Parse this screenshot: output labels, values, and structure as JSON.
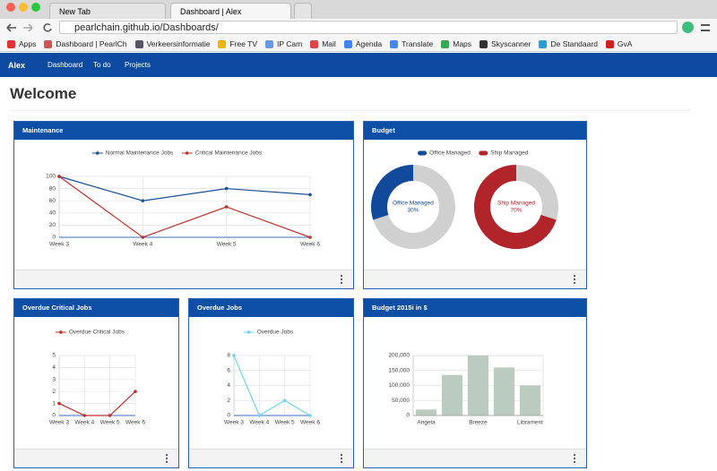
{
  "browser": {
    "tabs": [
      "New Tab",
      "Dashboard | Alex"
    ],
    "url": "pearlchain.github.io/Dashboards/",
    "bookmarks": [
      "Apps",
      "Dashboard | PearlCh",
      "Verkeersinformatie",
      "Free TV",
      "IP Cam",
      "Mail",
      "Agenda",
      "Translate",
      "Maps",
      "Skyscanner",
      "De Standaard",
      "GvA"
    ]
  },
  "nav": {
    "brand": "Alex",
    "links": [
      "Dashboard",
      "To do",
      "Projects"
    ]
  },
  "heading": "Welcome",
  "chart_data": [
    {
      "type": "line",
      "title": "Maintenance",
      "categories": [
        "Week 3",
        "Week 4",
        "Week 5",
        "Week 6"
      ],
      "series": [
        {
          "name": "Normal Maintenance Jobs",
          "color": "#1a4f9c",
          "values": [
            100,
            60,
            80,
            70
          ]
        },
        {
          "name": "Critical Maintenance Jobs",
          "color": "#c0302a",
          "values": [
            100,
            0,
            50,
            0
          ]
        }
      ],
      "ylim": [
        0,
        100
      ],
      "yticks": [
        0,
        20,
        40,
        60,
        80,
        100
      ],
      "grid": true
    },
    {
      "type": "donut",
      "title": "Budget",
      "categories": [
        "Office Managed",
        "Ship Managed"
      ],
      "values": [
        30,
        70
      ],
      "value_labels": [
        "30%",
        "70%"
      ],
      "colors": [
        "#124a9b",
        "#b0242a"
      ]
    },
    {
      "type": "line",
      "title": "Overdue Critical Jobs",
      "categories": [
        "Week 3",
        "Week 4",
        "Week 5",
        "Week 6"
      ],
      "series": [
        {
          "name": "Overdue Critical Jobs",
          "color": "#c0302a",
          "values": [
            1,
            0,
            0,
            2
          ]
        }
      ],
      "ylim": [
        0,
        5
      ],
      "yticks": [
        0,
        1,
        2,
        3,
        4,
        5
      ],
      "grid": true
    },
    {
      "type": "line",
      "title": "Overdue Jobs",
      "categories": [
        "Week 3",
        "Week 4",
        "Week 5",
        "Week 6"
      ],
      "series": [
        {
          "name": "Overdue Jobs",
          "color": "#6fd3f0",
          "values": [
            8,
            0,
            2,
            0
          ]
        }
      ],
      "ylim": [
        0,
        8
      ],
      "yticks": [
        0,
        2,
        4,
        6,
        8
      ],
      "grid": true
    },
    {
      "type": "bar",
      "title": "Budget 2015i in $",
      "categories": [
        "Angela",
        null,
        "Breeze",
        null,
        "Librament"
      ],
      "values": [
        20000,
        135000,
        200000,
        160000,
        100000
      ],
      "color": "#bccbbf",
      "ylim": [
        0,
        200000
      ],
      "yticks": [
        0,
        {
          "value": 50000,
          "label": "50,000"
        },
        {
          "value": 100000,
          "label": "100,000"
        },
        {
          "value": 150000,
          "label": "150,000"
        },
        {
          "value": 200000,
          "label": "200,000"
        }
      ],
      "grid": true
    }
  ]
}
